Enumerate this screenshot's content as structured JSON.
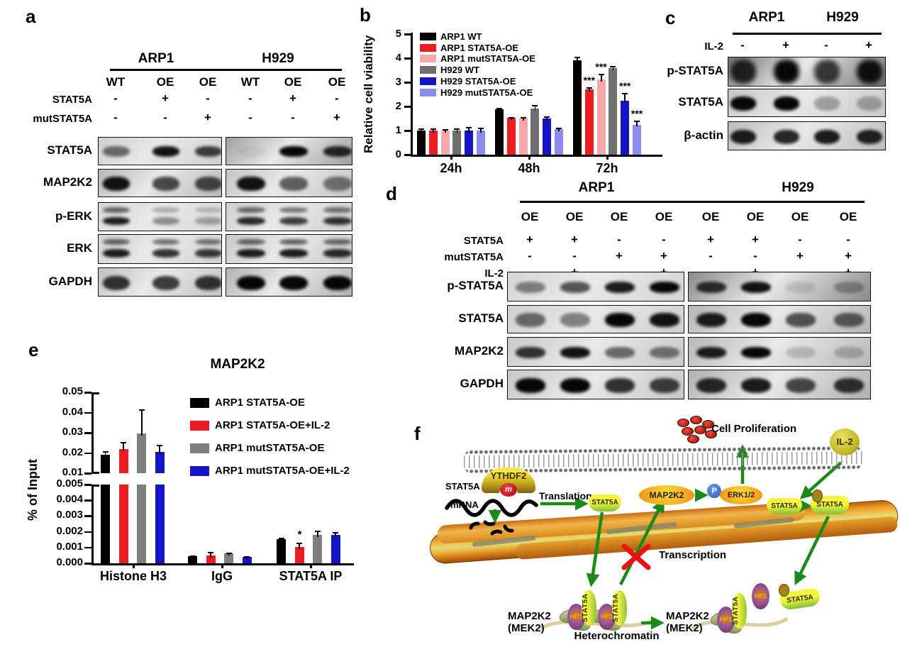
{
  "panel_a": {
    "label": "a",
    "groups": [
      "ARP1",
      "H929"
    ],
    "lanes": [
      "WT",
      "OE",
      "OE",
      "WT",
      "OE",
      "OE"
    ],
    "condition_rows": [
      {
        "label": "STAT5A",
        "values": [
          "-",
          "+",
          "-",
          "-",
          "+",
          "-"
        ]
      },
      {
        "label": "mutSTAT5A",
        "values": [
          "-",
          "-",
          "+",
          "-",
          "-",
          "+"
        ]
      }
    ],
    "blots": [
      {
        "label": "STAT5A",
        "style": "single",
        "left": {
          "bg": "#cfcfcf",
          "bands": [
            0.55,
            0.95,
            0.75
          ]
        },
        "right": {
          "bg": "#9f9f9f",
          "bands": [
            0.05,
            1,
            0.85
          ]
        }
      },
      {
        "label": "MAP2K2",
        "style": "thick",
        "left": {
          "bg": "#b8b8b8",
          "bands": [
            0.95,
            0.7,
            0.7
          ]
        },
        "right": {
          "bg": "#c4c4c4",
          "bands": [
            0.95,
            0.6,
            0.5
          ]
        }
      },
      {
        "label": "p-ERK",
        "style": "double",
        "left": {
          "bg": "#d8d8d8",
          "bands": [
            0.9,
            0.4,
            0.3
          ]
        },
        "right": {
          "bg": "#cfcfcf",
          "bands": [
            0.85,
            0.75,
            0.8
          ]
        }
      },
      {
        "label": "ERK",
        "style": "double",
        "left": {
          "bg": "#d2d2d2",
          "bands": [
            0.9,
            0.8,
            0.78
          ]
        },
        "right": {
          "bg": "#c9c9c9",
          "bands": [
            0.9,
            0.9,
            0.85
          ]
        }
      },
      {
        "label": "GAPDH",
        "style": "thick",
        "left": {
          "bg": "#c2c2c2",
          "bands": [
            0.8,
            0.75,
            0.8
          ]
        },
        "right": {
          "bg": "#b2b2b2",
          "bands": [
            1,
            1,
            1
          ]
        }
      }
    ]
  },
  "panel_b": {
    "label": "b"
  },
  "panel_c": {
    "label": "c",
    "groups": [
      "ARP1",
      "H929"
    ],
    "condition_rows": [
      {
        "label": "IL-2",
        "values": [
          "-",
          "+",
          "-",
          "+"
        ]
      }
    ],
    "blots": [
      {
        "label": "p-STAT5A",
        "style": "tall",
        "left": {
          "bg": "#6f6f6f",
          "bands": [
            0.85,
            1,
            0.75,
            0.95
          ]
        }
      },
      {
        "label": "STAT5A",
        "style": "thick",
        "left": {
          "bg": "#c8c8c8",
          "bands": [
            1,
            1,
            0.3,
            0.28
          ]
        }
      },
      {
        "label": "β-actin",
        "style": "thick",
        "left": {
          "bg": "#bdbdbd",
          "bands": [
            0.9,
            0.85,
            0.9,
            0.88
          ]
        }
      }
    ]
  },
  "panel_d": {
    "label": "d",
    "groups": [
      "ARP1",
      "H929"
    ],
    "lanes": [
      "OE",
      "OE",
      "OE",
      "OE",
      "OE",
      "OE",
      "OE",
      "OE"
    ],
    "condition_rows": [
      {
        "label": "STAT5A",
        "values": [
          "+",
          "+",
          "-",
          "-",
          "+",
          "+",
          "-",
          "-"
        ]
      },
      {
        "label": "mutSTAT5A",
        "values": [
          "-",
          "-",
          "+",
          "+",
          "-",
          "-",
          "+",
          "+"
        ]
      },
      {
        "label": "IL-2",
        "values": [
          "-",
          "+",
          "-",
          "+",
          "-",
          "+",
          "-",
          "+"
        ]
      }
    ],
    "blots": [
      {
        "label": "p-STAT5A",
        "style": "single",
        "left": {
          "bg": "#d5d5d5",
          "bands": [
            0.45,
            0.65,
            0.9,
            1
          ]
        },
        "right": {
          "bg": "#8a8a8a",
          "bands": [
            0.8,
            0.95,
            0.12,
            0.3
          ]
        }
      },
      {
        "label": "STAT5A",
        "style": "thick",
        "left": {
          "bg": "#d0d0d0",
          "bands": [
            0.55,
            0.45,
            1,
            0.95
          ]
        },
        "right": {
          "bg": "#b5b5b5",
          "bands": [
            0.9,
            1,
            0.65,
            0.6
          ]
        }
      },
      {
        "label": "MAP2K2",
        "style": "single",
        "left": {
          "bg": "#c8c8c8",
          "bands": [
            0.8,
            0.95,
            0.55,
            0.5
          ]
        },
        "right": {
          "bg": "#b8b8b8",
          "bands": [
            0.9,
            1,
            0.18,
            0.22
          ]
        }
      },
      {
        "label": "GAPDH",
        "style": "thick",
        "left": {
          "bg": "#c8c8c8",
          "bands": [
            1,
            1,
            0.8,
            0.75
          ]
        },
        "right": {
          "bg": "#b0b0b0",
          "bands": [
            0.85,
            0.9,
            0.7,
            0.8
          ]
        }
      }
    ]
  },
  "panel_e": {
    "label": "e"
  },
  "panel_f": {
    "label": "f",
    "cell_proliferation": "Cell Proliferation",
    "il2": "IL-2",
    "ythdf2": "YTHDF2",
    "m6a_mark": "m",
    "gene": "STAT5A",
    "mrna": "mRNA",
    "translation": "Translation",
    "stat5a": "STAT5A",
    "map2k2": "MAP2K2",
    "phospho": "P",
    "erk12": "ERK1/2",
    "transcription": "Transcription",
    "mek2_line1": "MAP2K2",
    "mek2_line2": "(MEK2)",
    "heterochromatin": "Heterochromatin",
    "hp1": "HP1"
  },
  "chart_data": [
    {
      "id": "panel_b",
      "type": "bar",
      "title": "",
      "ylabel": "Relative cell viability",
      "ylim": [
        0,
        5
      ],
      "yticks": [
        0,
        1,
        2,
        3,
        4,
        5
      ],
      "categories": [
        "24h",
        "48h",
        "72h"
      ],
      "legend_position": "top-left",
      "grid": false,
      "series": [
        {
          "name": "ARP1 WT",
          "color": "#000000",
          "values": [
            1.0,
            1.87,
            3.9
          ],
          "errors": [
            0.1,
            0.06,
            0.15
          ],
          "sig": [
            "",
            "",
            ""
          ]
        },
        {
          "name": "ARP1 STAT5A-OE",
          "color": "#ed1c24",
          "values": [
            1.0,
            1.53,
            2.7
          ],
          "errors": [
            0.1,
            0.03,
            0.1
          ],
          "sig": [
            "",
            "",
            "***"
          ]
        },
        {
          "name": "ARP1 mutSTAT5A-OE",
          "color": "#f7a8a8",
          "values": [
            1.0,
            1.5,
            3.12
          ],
          "errors": [
            0.07,
            0.06,
            0.22
          ],
          "sig": [
            "",
            "",
            "***"
          ]
        },
        {
          "name": "H929 WT",
          "color": "#6e6e6e",
          "values": [
            1.0,
            1.9,
            3.6
          ],
          "errors": [
            0.1,
            0.16,
            0.08
          ],
          "sig": [
            "",
            "",
            ""
          ]
        },
        {
          "name": "H929 STAT5A-OE",
          "color": "#1414c8",
          "values": [
            1.0,
            1.5,
            2.25
          ],
          "errors": [
            0.15,
            0.1,
            0.32
          ],
          "sig": [
            "",
            "",
            "***"
          ]
        },
        {
          "name": "H929 mutSTAT5A-OE",
          "color": "#8c8cef",
          "values": [
            1.0,
            1.05,
            1.25
          ],
          "errors": [
            0.13,
            0.08,
            0.15
          ],
          "sig": [
            "",
            "",
            "***"
          ]
        }
      ]
    },
    {
      "id": "panel_e",
      "type": "bar",
      "title": "MAP2K2",
      "ylabel": "% of Input",
      "broken_axis": {
        "upper": [
          0.01,
          0.05
        ],
        "lower": [
          0,
          0.005
        ]
      },
      "upper_ticks": [
        0.01,
        0.02,
        0.03,
        0.04,
        0.05
      ],
      "lower_ticks": [
        0,
        0.001,
        0.002,
        0.003,
        0.004,
        0.005
      ],
      "categories": [
        "Histone H3",
        "IgG",
        "STAT5A IP"
      ],
      "legend_position": "right",
      "grid": false,
      "series": [
        {
          "name": "ARP1 STAT5A-OE",
          "color": "#000000",
          "values": [
            0.019,
            0.00045,
            0.00155
          ],
          "errors": [
            0.002,
            5e-05,
            5e-05
          ],
          "sig": [
            "",
            "",
            ""
          ]
        },
        {
          "name": "ARP1 STAT5A-OE+IL-2",
          "color": "#ed1c24",
          "values": [
            0.022,
            0.0005,
            0.00105
          ],
          "errors": [
            0.0035,
            0.0002,
            0.00025
          ],
          "sig": [
            "",
            "",
            "*"
          ]
        },
        {
          "name": "ARP1 mutSTAT5A-OE",
          "color": "#7f7f7f",
          "values": [
            0.0295,
            0.00062,
            0.00178
          ],
          "errors": [
            0.012,
            4e-05,
            0.00028
          ],
          "sig": [
            "",
            "",
            ""
          ]
        },
        {
          "name": "ARP1 mutSTAT5A-OE+IL-2",
          "color": "#1414c8",
          "values": [
            0.0205,
            0.00042,
            0.0018
          ],
          "errors": [
            0.0035,
            3e-05,
            0.0002
          ],
          "sig": [
            "",
            "",
            ""
          ]
        }
      ]
    }
  ]
}
